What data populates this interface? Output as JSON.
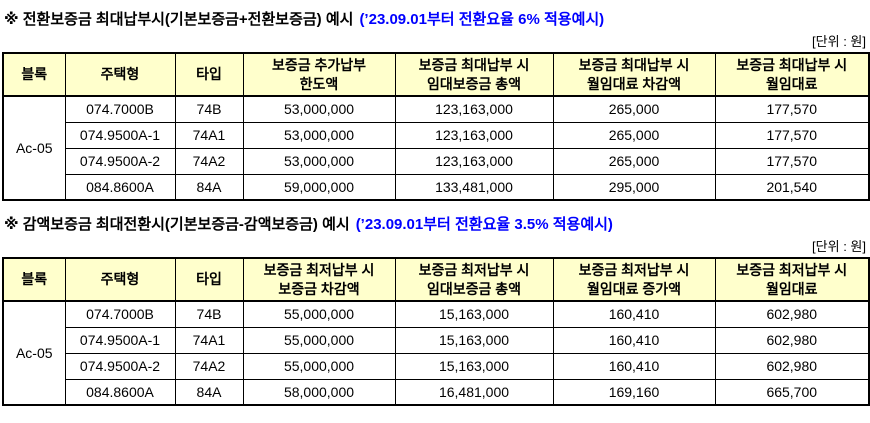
{
  "unit_label": "[단위 : 원]",
  "colors": {
    "header_bg": "#ffffcc",
    "title_note": "#0000ff",
    "border": "#000000"
  },
  "sections": [
    {
      "title_main": "※ 전환보증금 최대납부시(기본보증금+전환보증금) 예시",
      "title_note": "(’23.09.01부터 전환요율 6% 적용예시)",
      "table": {
        "headers": [
          "블록",
          "주택형",
          "타입",
          "보증금 추가납부\n한도액",
          "보증금 최대납부 시\n임대보증금 총액",
          "보증금 최대납부 시\n월임대료 차감액",
          "보증금 최대납부 시\n월임대료"
        ],
        "block": "Ac-05",
        "rows": [
          [
            "074.7000B",
            "74B",
            "53,000,000",
            "123,163,000",
            "265,000",
            "177,570"
          ],
          [
            "074.9500A-1",
            "74A1",
            "53,000,000",
            "123,163,000",
            "265,000",
            "177,570"
          ],
          [
            "074.9500A-2",
            "74A2",
            "53,000,000",
            "123,163,000",
            "265,000",
            "177,570"
          ],
          [
            "084.8600A",
            "84A",
            "59,000,000",
            "133,481,000",
            "295,000",
            "201,540"
          ]
        ]
      }
    },
    {
      "title_main": "※ 감액보증금 최대전환시(기본보증금-감액보증금) 예시",
      "title_note": "(’23.09.01부터 전환요율 3.5% 적용예시)",
      "table": {
        "headers": [
          "블록",
          "주택형",
          "타입",
          "보증금 최저납부 시\n보증금 차감액",
          "보증금 최저납부 시\n임대보증금 총액",
          "보증금 최저납부 시\n월임대료 증가액",
          "보증금 최저납부 시\n월임대료"
        ],
        "block": "Ac-05",
        "rows": [
          [
            "074.7000B",
            "74B",
            "55,000,000",
            "15,163,000",
            "160,410",
            "602,980"
          ],
          [
            "074.9500A-1",
            "74A1",
            "55,000,000",
            "15,163,000",
            "160,410",
            "602,980"
          ],
          [
            "074.9500A-2",
            "74A2",
            "55,000,000",
            "15,163,000",
            "160,410",
            "602,980"
          ],
          [
            "084.8600A",
            "84A",
            "58,000,000",
            "16,481,000",
            "169,160",
            "665,700"
          ]
        ]
      }
    }
  ]
}
